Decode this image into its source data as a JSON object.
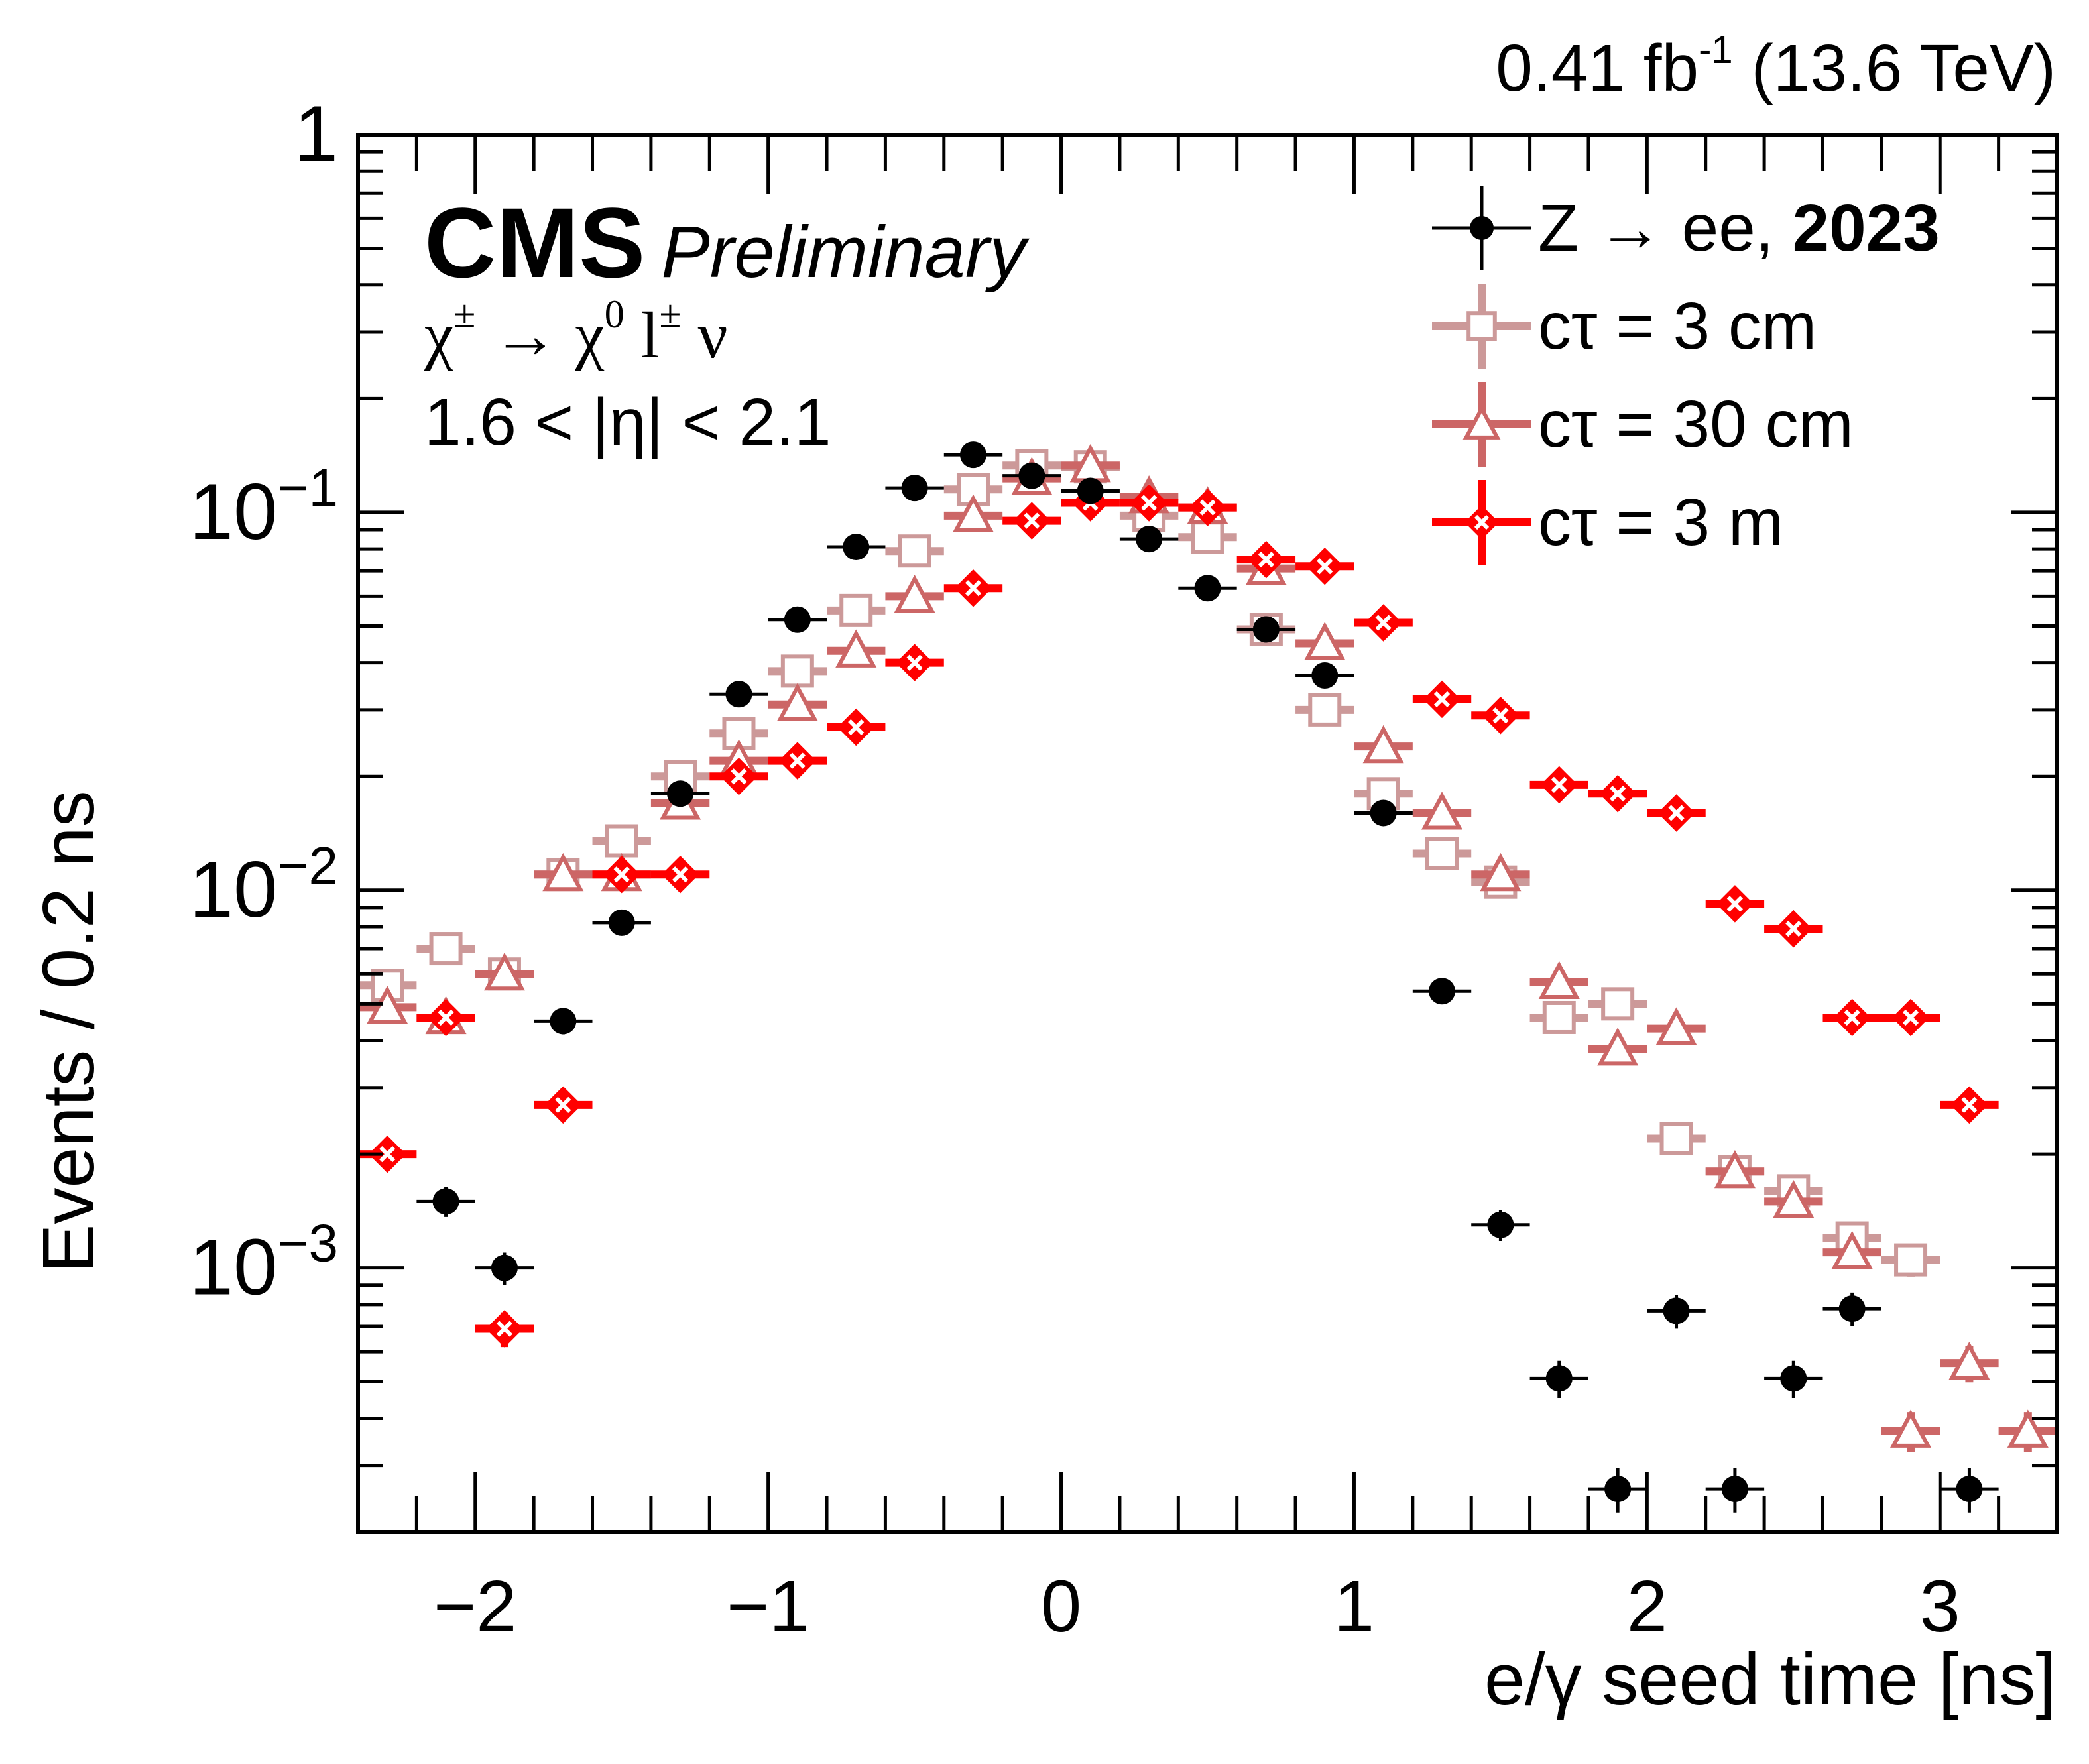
{
  "header": {
    "lumi_prefix": "0.41 fb",
    "lumi_exp": "-1",
    "energy": "(13.6 TeV)",
    "experiment": "CMS",
    "status": "Preliminary",
    "process_parts": [
      "χ",
      "±",
      " → χ",
      "0",
      " l",
      "±",
      " ν"
    ],
    "eta_cut": "1.6 < |η| < 2.1"
  },
  "legend": [
    {
      "label": "Z → ee, ",
      "label_bold": "2023",
      "marker": "filled-circle",
      "color": "#000000"
    },
    {
      "label": "cτ = 3 cm",
      "label_bold": "",
      "marker": "open-square",
      "color": "#cc9999"
    },
    {
      "label": "cτ = 30 cm",
      "label_bold": "",
      "marker": "open-triangle",
      "color": "#cc6666"
    },
    {
      "label": "cτ = 3 m",
      "label_bold": "",
      "marker": "open-diamond-cross",
      "color": "#ff0000"
    }
  ],
  "chart_data": {
    "type": "scatter",
    "title": "",
    "xlabel": "e/γ seed time [ns]",
    "ylabel": "Events / 0.2 ns",
    "xlim": [
      -2.4,
      3.4
    ],
    "ylim": [
      0.0002,
      1
    ],
    "yscale": "log",
    "bin_width": 0.2,
    "x_ticks": [
      -2,
      -1,
      0,
      1,
      2,
      3
    ],
    "x_tick_labels": [
      "−2",
      "−1",
      "0",
      "1",
      "2",
      "3"
    ],
    "y_ticks": [
      1,
      0.1,
      0.01,
      0.001
    ],
    "y_tick_labels": [
      {
        "base": "1",
        "exp": ""
      },
      {
        "base": "10",
        "exp": "−1"
      },
      {
        "base": "10",
        "exp": "−2"
      },
      {
        "base": "10",
        "exp": "−3"
      }
    ],
    "grid": false,
    "legend_position": "top-right",
    "series": [
      {
        "name": "Z → ee, 2023",
        "color": "#000000",
        "marker": "filled-circle",
        "x": [
          -2.1,
          -1.9,
          -1.7,
          -1.5,
          -1.3,
          -1.1,
          -0.9,
          -0.7,
          -0.5,
          -0.3,
          -0.1,
          0.1,
          0.3,
          0.5,
          0.7,
          0.9,
          1.1,
          1.3,
          1.5,
          1.7,
          1.9,
          2.1,
          2.3,
          2.5,
          2.7,
          3.1
        ],
        "y": [
          0.0015,
          0.001,
          0.0045,
          0.0082,
          0.018,
          0.033,
          0.052,
          0.081,
          0.116,
          0.142,
          0.125,
          0.114,
          0.085,
          0.063,
          0.049,
          0.037,
          0.016,
          0.0054,
          0.0013,
          0.00051,
          0.00026,
          0.00077,
          0.00026,
          0.00051,
          0.00078,
          0.00026
        ]
      },
      {
        "name": "cτ = 3 cm",
        "color": "#cc9999",
        "marker": "open-square",
        "x": [
          -2.3,
          -2.1,
          -1.9,
          -1.7,
          -1.5,
          -1.3,
          -1.1,
          -0.9,
          -0.7,
          -0.5,
          -0.3,
          -0.1,
          0.1,
          0.3,
          0.5,
          0.7,
          0.9,
          1.1,
          1.3,
          1.5,
          1.7,
          1.9,
          2.1,
          2.3,
          2.5,
          2.7,
          2.9
        ],
        "y": [
          0.0056,
          0.007,
          0.006,
          0.011,
          0.0135,
          0.02,
          0.026,
          0.038,
          0.055,
          0.079,
          0.115,
          0.133,
          0.132,
          0.098,
          0.086,
          0.049,
          0.03,
          0.018,
          0.0125,
          0.0105,
          0.0046,
          0.005,
          0.0022,
          0.0018,
          0.0016,
          0.0012,
          0.00105
        ]
      },
      {
        "name": "cτ = 30 cm",
        "color": "#cc6666",
        "marker": "open-triangle",
        "x": [
          -2.3,
          -2.1,
          -1.9,
          -1.7,
          -1.5,
          -1.3,
          -1.1,
          -0.9,
          -0.7,
          -0.5,
          -0.3,
          -0.1,
          0.1,
          0.3,
          0.5,
          0.7,
          0.9,
          1.1,
          1.3,
          1.5,
          1.7,
          1.9,
          2.1,
          2.3,
          2.5,
          2.7,
          2.9,
          3.1,
          3.3
        ],
        "y": [
          0.0049,
          0.0046,
          0.006,
          0.011,
          0.011,
          0.017,
          0.022,
          0.031,
          0.043,
          0.06,
          0.098,
          0.123,
          0.133,
          0.11,
          0.103,
          0.071,
          0.045,
          0.024,
          0.016,
          0.011,
          0.0057,
          0.0038,
          0.0043,
          0.0018,
          0.0015,
          0.0011,
          0.00037,
          0.00056,
          0.00037
        ]
      },
      {
        "name": "cτ = 3 m",
        "color": "#ff0000",
        "marker": "open-diamond-cross",
        "x": [
          -2.3,
          -2.1,
          -1.9,
          -1.7,
          -1.5,
          -1.3,
          -1.1,
          -0.9,
          -0.7,
          -0.5,
          -0.3,
          -0.1,
          0.1,
          0.3,
          0.5,
          0.7,
          0.9,
          1.1,
          1.3,
          1.5,
          1.7,
          1.9,
          2.1,
          2.3,
          2.5,
          2.7,
          2.9,
          3.1
        ],
        "y": [
          0.002,
          0.0046,
          0.00069,
          0.0027,
          0.011,
          0.011,
          0.02,
          0.022,
          0.027,
          0.04,
          0.063,
          0.095,
          0.106,
          0.106,
          0.103,
          0.075,
          0.072,
          0.051,
          0.032,
          0.029,
          0.019,
          0.018,
          0.016,
          0.0092,
          0.0079,
          0.0046,
          0.0046,
          0.0027
        ]
      }
    ]
  }
}
